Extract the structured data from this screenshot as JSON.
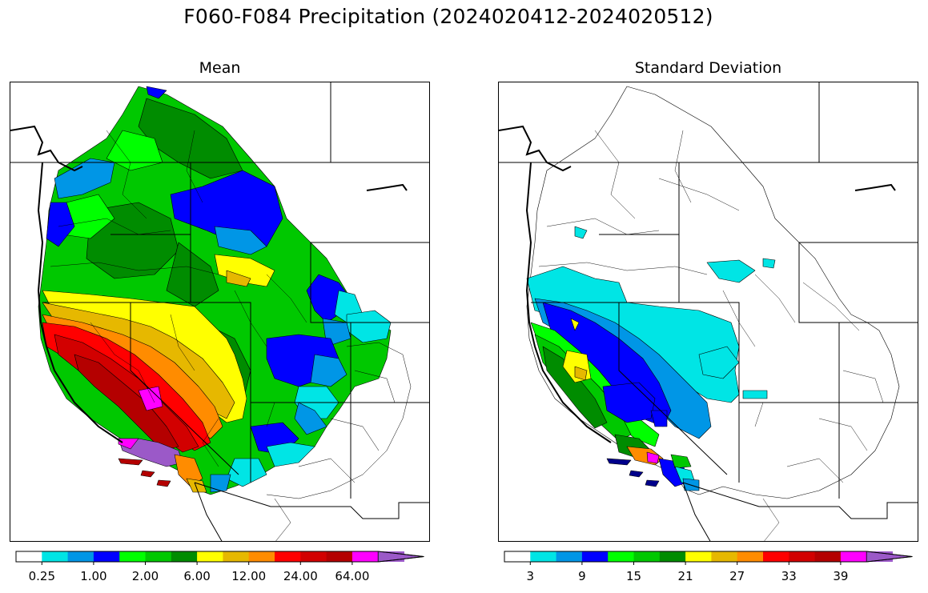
{
  "title": "F060-F084 Precipitation (2024020412-2024020512)",
  "panels": [
    {
      "title": "Mean",
      "colorbar": {
        "colors": [
          "#ffffff",
          "#00e5e5",
          "#0096e6",
          "#0000ff",
          "#00ff00",
          "#00c800",
          "#008c00",
          "#ffff00",
          "#e6b800",
          "#ff8c00",
          "#ff0000",
          "#d20000",
          "#b40000",
          "#ff00ff",
          "#9b59c8"
        ],
        "tick_labels": [
          "0.25",
          "1.00",
          "2.00",
          "6.00",
          "12.00",
          "24.00",
          "64.00"
        ]
      }
    },
    {
      "title": "Standard Deviation",
      "colorbar": {
        "colors": [
          "#ffffff",
          "#00e5e5",
          "#0096e6",
          "#0000ff",
          "#00ff00",
          "#00c800",
          "#008c00",
          "#ffff00",
          "#e6b800",
          "#ff8c00",
          "#ff0000",
          "#d20000",
          "#b40000",
          "#ff00ff",
          "#9b59c8"
        ],
        "tick_labels": [
          "3",
          "9",
          "15",
          "21",
          "27",
          "33",
          "39"
        ]
      }
    }
  ]
}
